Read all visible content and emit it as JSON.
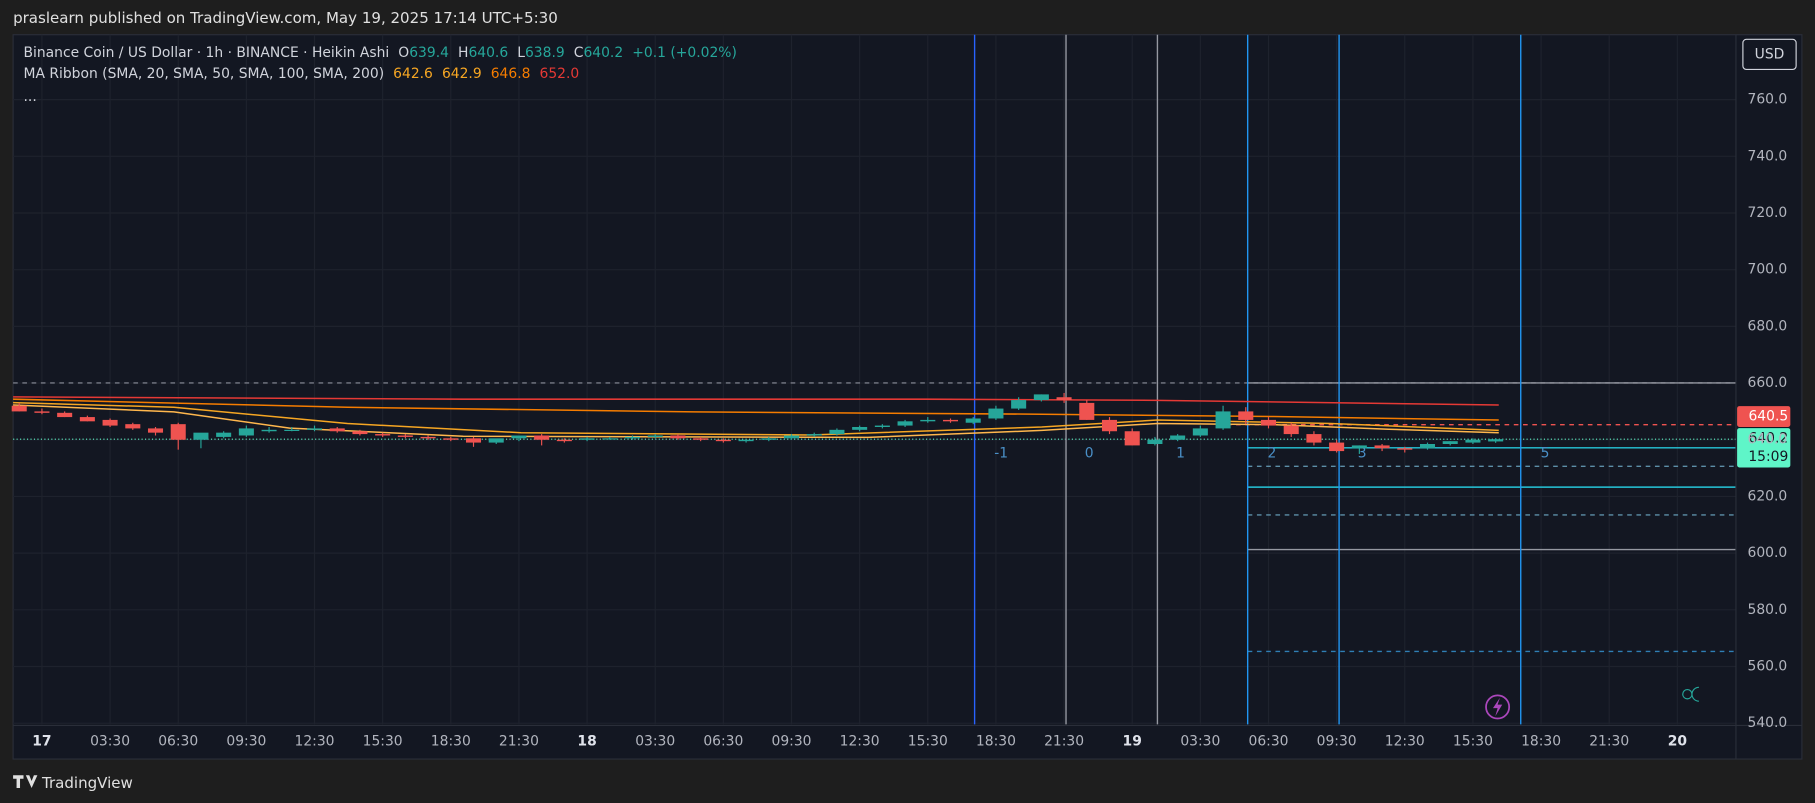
{
  "header": {
    "text": "praslearn published on TradingView.com, May 19, 2025 17:14 UTC+5:30"
  },
  "footer": {
    "brand": "TradingView"
  },
  "chart_data": {
    "type": "candlestick",
    "title": "Binance Coin / US Dollar · 1h · BINANCE · Heikin Ashi",
    "ohlc_legend": {
      "labels": [
        "O",
        "H",
        "L",
        "C"
      ],
      "values": [
        639.4,
        640.6,
        638.9,
        640.2
      ],
      "change": "+0.1 (+0.02%)"
    },
    "indicator": {
      "name": "MA Ribbon (SMA, 20, SMA, 50, SMA, 100, SMA, 200)",
      "values": [
        642.6,
        642.9,
        646.8,
        652
      ],
      "value_labels": [
        "642.6",
        "642.9",
        "646.8",
        "652.0"
      ],
      "colors": [
        "#f6a623",
        "#f6a623",
        "#f57c00",
        "#e53935"
      ]
    },
    "more": "...",
    "currency": "USD",
    "x": [
      -0.5,
      0.5,
      1.5,
      2.5,
      3.5,
      4.5,
      5.5,
      6.5,
      7.5,
      8.5,
      9.5,
      10.5,
      11.5,
      12.5,
      13.5,
      14.5,
      15.5,
      16.5,
      17.5,
      18.5,
      19.5,
      20.5,
      21.5,
      22.5,
      23.5,
      24.5,
      25.5,
      26.5,
      27.5,
      28.5,
      29.5,
      30.5,
      31.5,
      32.5,
      33.5,
      34.5,
      35.5,
      36.5,
      37.5,
      38.5,
      39.5,
      40.5,
      41.5,
      42.5,
      43.5,
      44.5,
      45.5,
      46.5,
      47.5,
      48.5,
      49.5,
      50.5,
      51.5,
      52.5,
      53.5,
      54.5,
      55.5,
      56.5,
      57.5,
      58.5,
      59.5,
      60.5,
      61.5,
      62.5,
      63.5,
      64.5
    ],
    "open": [
      652,
      650,
      649.5,
      648,
      647,
      645.5,
      644,
      645.5,
      640,
      641,
      641.5,
      643,
      643.5,
      643.5,
      644,
      643,
      642,
      641.5,
      641,
      640.5,
      640.5,
      639,
      640.5,
      641.5,
      640,
      640,
      640.5,
      640.5,
      641,
      641.5,
      640.5,
      640,
      639.5,
      640,
      640.5,
      641.5,
      642,
      643.5,
      644.5,
      645,
      646.5,
      647,
      646,
      647.5,
      651,
      654,
      655,
      653,
      647,
      643,
      638.5,
      640,
      641.5,
      644,
      650,
      647,
      645,
      642,
      639,
      637,
      638,
      637,
      637,
      638.5,
      639,
      639.4
    ],
    "high": [
      653,
      651,
      650,
      648.5,
      647.5,
      646,
      644.5,
      646,
      641,
      643,
      645,
      644.5,
      644.5,
      645,
      644.5,
      643.5,
      642.5,
      642,
      641.5,
      641,
      641,
      640,
      641.5,
      642,
      640.5,
      641,
      641,
      641.5,
      642,
      642,
      641,
      640.5,
      640,
      641,
      642,
      642.5,
      644,
      645,
      645.5,
      647,
      648,
      647.5,
      648,
      652,
      655,
      656,
      656.5,
      654,
      648,
      644,
      641,
      642,
      645,
      652,
      651.5,
      648,
      646,
      643,
      640,
      638,
      638.5,
      637.5,
      639,
      639.5,
      640.5,
      640.6
    ],
    "low": [
      650,
      649,
      648,
      646.5,
      644.5,
      643.5,
      641.5,
      636.5,
      637,
      640.5,
      641,
      642.5,
      643,
      643,
      642.5,
      641.5,
      641,
      640.5,
      640,
      639.5,
      637.5,
      638.5,
      639.5,
      638,
      639,
      639.5,
      640,
      640,
      640.5,
      640,
      639.5,
      639,
      639,
      639.5,
      640,
      641,
      641.5,
      643,
      644,
      644.5,
      646,
      646,
      645.5,
      647,
      650.5,
      653.5,
      653,
      647,
      642,
      638,
      638,
      639.5,
      641,
      643.5,
      645.5,
      644,
      641,
      638,
      635.5,
      635,
      636,
      635.5,
      636.5,
      638,
      638.5,
      638.9
    ],
    "close": [
      650,
      649.5,
      648,
      646.5,
      645,
      644,
      642.5,
      640,
      642.5,
      642.5,
      644,
      643.5,
      643.5,
      644,
      643,
      642,
      641.5,
      641,
      640.5,
      640,
      639,
      640.5,
      641.5,
      640,
      639.5,
      640.5,
      640.5,
      641,
      641.5,
      640.5,
      640,
      639.5,
      640,
      640.5,
      641.5,
      642,
      643.5,
      644.5,
      645,
      646.5,
      647,
      646.5,
      647.5,
      651,
      654,
      656,
      654,
      647,
      643,
      638,
      640,
      641.5,
      644,
      650,
      647,
      645,
      642,
      639,
      636,
      638,
      637,
      636.5,
      638.5,
      639.5,
      640,
      640.2
    ],
    "up_color": "#26a69a",
    "down_color": "#ef5350",
    "xlim": [
      -0.77,
      75.08
    ],
    "xticks": [
      {
        "value": 0.5,
        "label": "17"
      },
      {
        "value": 3.5,
        "label": "03:30"
      },
      {
        "value": 6.5,
        "label": "06:30"
      },
      {
        "value": 9.5,
        "label": "09:30"
      },
      {
        "value": 12.5,
        "label": "12:30"
      },
      {
        "value": 15.5,
        "label": "15:30"
      },
      {
        "value": 18.5,
        "label": "18:30"
      },
      {
        "value": 21.5,
        "label": "21:30"
      },
      {
        "value": 24.5,
        "label": "18"
      },
      {
        "value": 27.5,
        "label": "03:30"
      },
      {
        "value": 30.5,
        "label": "06:30"
      },
      {
        "value": 33.5,
        "label": "09:30"
      },
      {
        "value": 36.5,
        "label": "12:30"
      },
      {
        "value": 39.5,
        "label": "15:30"
      },
      {
        "value": 42.5,
        "label": "18:30"
      },
      {
        "value": 45.5,
        "label": "21:30"
      },
      {
        "value": 48.5,
        "label": "19"
      },
      {
        "value": 51.5,
        "label": "03:30"
      },
      {
        "value": 54.5,
        "label": "06:30"
      },
      {
        "value": 57.5,
        "label": "09:30"
      },
      {
        "value": 60.5,
        "label": "12:30"
      },
      {
        "value": 63.5,
        "label": "15:30"
      },
      {
        "value": 66.5,
        "label": "18:30"
      },
      {
        "value": 69.5,
        "label": "21:30"
      },
      {
        "value": 72.5,
        "label": "20"
      }
    ],
    "ylim": [
      539.6,
      782.9
    ],
    "yticks": [
      {
        "value": 540,
        "label": "540.0"
      },
      {
        "value": 560,
        "label": "560.0"
      },
      {
        "value": 580,
        "label": "580.0"
      },
      {
        "value": 600,
        "label": "600.0"
      },
      {
        "value": 620,
        "label": "620.0"
      },
      {
        "value": 640,
        "label": "640.0"
      },
      {
        "value": 660,
        "label": "660.0"
      },
      {
        "value": 680,
        "label": "680.0"
      },
      {
        "value": 700,
        "label": "700.0"
      },
      {
        "value": 720,
        "label": "720.0"
      },
      {
        "value": 740,
        "label": "740.0"
      },
      {
        "value": 760,
        "label": "760.0"
      }
    ],
    "last_price": {
      "value": 640.2,
      "countdown": "15:09"
    },
    "alert_price": {
      "value": 640.5
    },
    "cycle_labels": [
      -1,
      0,
      1,
      2,
      3,
      5
    ],
    "grid": true
  }
}
